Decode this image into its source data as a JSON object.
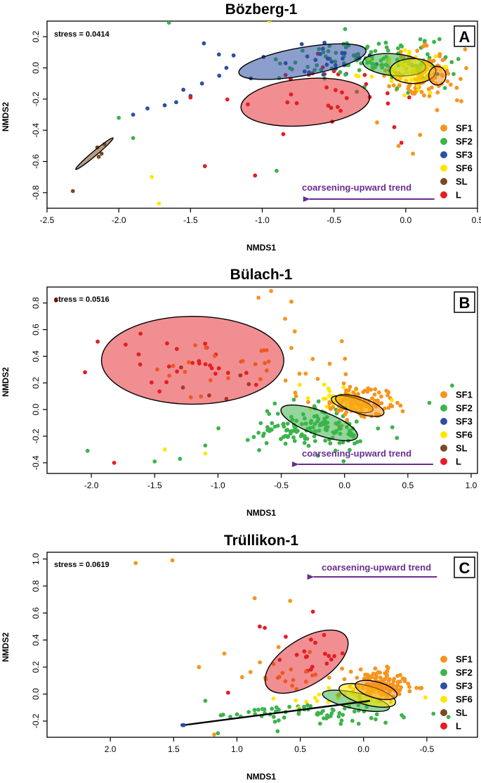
{
  "colors": {
    "SF1": "#f7941d",
    "SF2": "#3cb44b",
    "SF3": "#2e4ea3",
    "SF6": "#ffe600",
    "SL": "#7a4a23",
    "L": "#e31e24",
    "trend": "#6a2d91"
  },
  "chart_data": [
    {
      "type": "scatter",
      "panel_label": "A",
      "title": "Bözberg-1",
      "stress": "stress = 0.0414",
      "xlabel": "NMDS1",
      "ylabel": "NMDS2",
      "xlim": [
        -2.5,
        0.5
      ],
      "ylim": [
        -0.9,
        0.3
      ],
      "xticks": [
        -2.5,
        -2.0,
        -1.5,
        -1.0,
        -0.5,
        0.0,
        0.5
      ],
      "xtick_labels": [
        "-2.5",
        "-2.0",
        "-1.5",
        "-1.0",
        "-0.5",
        "0.0",
        "0.5"
      ],
      "yticks": [
        -0.8,
        -0.6,
        -0.4,
        -0.2,
        0.0,
        0.2
      ],
      "ytick_labels": [
        "-0.8",
        "-0.6",
        "-0.4",
        "-0.2",
        "0.0",
        "0.2"
      ],
      "legend": [
        "SF1",
        "SF2",
        "SF3",
        "SF6",
        "SL",
        "L"
      ],
      "trend_label": "coarsening-upward trend",
      "trend_arrow": {
        "from": 0.2,
        "to": -0.72,
        "y": -0.77
      },
      "clusters": [
        {
          "group": "SF1",
          "cx": 0.1,
          "cy": -0.05,
          "sx": 0.12,
          "sy": 0.08,
          "n": 120
        },
        {
          "group": "SF2",
          "cx": -0.25,
          "cy": 0.05,
          "sx": 0.28,
          "sy": 0.07,
          "n": 110
        },
        {
          "group": "SF3",
          "cx": -0.55,
          "cy": 0.05,
          "sx": 0.28,
          "sy": 0.06,
          "n": 30
        },
        {
          "group": "SF6",
          "cx": 0.0,
          "cy": -0.02,
          "sx": 0.15,
          "sy": 0.07,
          "n": 40
        },
        {
          "group": "L",
          "cx": -0.55,
          "cy": -0.15,
          "sx": 0.3,
          "sy": 0.12,
          "n": 30
        }
      ],
      "points": [
        {
          "group": "SF3",
          "x": -1.8,
          "y": -0.26
        },
        {
          "group": "SF3",
          "x": -1.9,
          "y": -0.3
        },
        {
          "group": "SF3",
          "x": -1.5,
          "y": -0.18
        },
        {
          "group": "SF3",
          "x": -1.6,
          "y": -0.22
        },
        {
          "group": "SF3",
          "x": -1.3,
          "y": -0.05
        },
        {
          "group": "SF3",
          "x": -1.2,
          "y": 0.08
        },
        {
          "group": "SF3",
          "x": -1.42,
          "y": -0.1
        },
        {
          "group": "SF3",
          "x": -1.68,
          "y": -0.24
        },
        {
          "group": "SF3",
          "x": -1.55,
          "y": -0.14
        },
        {
          "group": "SF3",
          "x": -1.25,
          "y": 0.0
        },
        {
          "group": "SF2",
          "x": -1.65,
          "y": 0.29
        },
        {
          "group": "SF2",
          "x": -1.9,
          "y": -0.45
        },
        {
          "group": "SF2",
          "x": -0.9,
          "y": -0.66
        },
        {
          "group": "SF2",
          "x": -2.0,
          "y": -0.32
        },
        {
          "group": "SF6",
          "x": -1.72,
          "y": -0.87
        },
        {
          "group": "SF6",
          "x": -1.77,
          "y": -0.7
        },
        {
          "group": "SF6",
          "x": -0.95,
          "y": 0.3
        },
        {
          "group": "L",
          "x": -1.4,
          "y": -0.63
        },
        {
          "group": "L",
          "x": -1.05,
          "y": -0.69
        },
        {
          "group": "L",
          "x": -1.5,
          "y": -0.19
        },
        {
          "group": "L",
          "x": -0.08,
          "y": -0.38
        },
        {
          "group": "L",
          "x": -0.03,
          "y": -0.48
        },
        {
          "group": "SL",
          "x": -2.32,
          "y": -0.79
        },
        {
          "group": "SL",
          "x": -2.15,
          "y": -0.51
        },
        {
          "group": "SL",
          "x": -2.12,
          "y": -0.55
        },
        {
          "group": "SL",
          "x": -2.14,
          "y": -0.57
        },
        {
          "group": "SL",
          "x": -2.1,
          "y": -0.49
        },
        {
          "group": "SF1",
          "x": 0.1,
          "y": -0.43
        },
        {
          "group": "SF1",
          "x": -0.05,
          "y": -0.5
        },
        {
          "group": "SF1",
          "x": 0.05,
          "y": -0.55
        },
        {
          "group": "SF1",
          "x": -0.2,
          "y": -0.35
        }
      ],
      "ellipses": [
        {
          "group": "SF3",
          "cx": -0.72,
          "cy": 0.04,
          "rx": 0.45,
          "ry": 0.09,
          "angle": 10
        },
        {
          "group": "L",
          "cx": -0.7,
          "cy": -0.22,
          "rx": 0.45,
          "ry": 0.15,
          "angle": 5
        },
        {
          "group": "SF2",
          "cx": -0.08,
          "cy": 0.02,
          "rx": 0.22,
          "ry": 0.07,
          "angle": -5
        },
        {
          "group": "SF6",
          "cx": 0.05,
          "cy": -0.02,
          "rx": 0.16,
          "ry": 0.08,
          "angle": 0
        },
        {
          "group": "SF1",
          "cx": 0.22,
          "cy": -0.05,
          "rx": 0.06,
          "ry": 0.06,
          "angle": 0
        },
        {
          "group": "SL",
          "cx": -2.17,
          "cy": -0.55,
          "rx": 0.17,
          "ry": 0.015,
          "angle": 40
        }
      ]
    },
    {
      "type": "scatter",
      "panel_label": "B",
      "title": "Bülach-1",
      "stress": "stress = 0.0516",
      "xlabel": "NMDS1",
      "ylabel": "NMDS2",
      "xlim": [
        -2.35,
        1.05
      ],
      "ylim": [
        -0.48,
        0.92
      ],
      "xticks": [
        -2.0,
        -1.5,
        -1.0,
        -0.5,
        0.0,
        0.5,
        1.0
      ],
      "xtick_labels": [
        "-2.0",
        "-1.5",
        "-1.0",
        "-0.5",
        "0.0",
        "0.5",
        "1.0"
      ],
      "yticks": [
        -0.4,
        -0.2,
        0.0,
        0.2,
        0.4,
        0.6,
        0.8
      ],
      "ytick_labels": [
        "-0.4",
        "-0.2",
        "0.0",
        "0.2",
        "0.4",
        "0.6",
        "0.8"
      ],
      "legend": [
        "SF1",
        "SF2",
        "SF3",
        "SF6",
        "SL",
        "L"
      ],
      "trend_label": "coarsening-upward trend",
      "trend_arrow": {
        "from": 0.7,
        "to": -0.42,
        "y": -0.44
      },
      "clusters": [
        {
          "group": "SF1",
          "cx": 0.1,
          "cy": 0.05,
          "sx": 0.12,
          "sy": 0.05,
          "n": 120
        },
        {
          "group": "SF2",
          "cx": -0.25,
          "cy": -0.15,
          "sx": 0.25,
          "sy": 0.07,
          "n": 140
        },
        {
          "group": "SF6",
          "cx": -0.05,
          "cy": 0.1,
          "sx": 0.15,
          "sy": 0.05,
          "n": 25
        },
        {
          "group": "SF1",
          "cx": -0.4,
          "cy": 0.35,
          "sx": 0.25,
          "sy": 0.15,
          "n": 25
        },
        {
          "group": "L",
          "cx": -1.2,
          "cy": 0.3,
          "sx": 0.22,
          "sy": 0.12,
          "n": 25
        },
        {
          "group": "SF1",
          "cx": -1.2,
          "cy": 0.3,
          "sx": 0.22,
          "sy": 0.12,
          "n": 12
        },
        {
          "group": "SL",
          "cx": -1.0,
          "cy": 0.2,
          "sx": 0.15,
          "sy": 0.1,
          "n": 6
        }
      ],
      "points": [
        {
          "group": "L",
          "x": -2.28,
          "y": 0.82
        },
        {
          "group": "L",
          "x": -1.82,
          "y": -0.4
        },
        {
          "group": "L",
          "x": -1.95,
          "y": 0.51
        },
        {
          "group": "L",
          "x": -2.05,
          "y": 0.28
        },
        {
          "group": "SF2",
          "x": -2.03,
          "y": -0.31
        },
        {
          "group": "SF2",
          "x": -1.5,
          "y": -0.39
        },
        {
          "group": "SF2",
          "x": -1.3,
          "y": -0.37
        },
        {
          "group": "SF2",
          "x": -1.1,
          "y": -0.27
        },
        {
          "group": "SF2",
          "x": 0.85,
          "y": 0.18
        },
        {
          "group": "SF2",
          "x": 0.67,
          "y": 0.05
        },
        {
          "group": "SF6",
          "x": -1.42,
          "y": -0.3
        },
        {
          "group": "SF6",
          "x": -1.1,
          "y": -0.33
        },
        {
          "group": "SF1",
          "x": -0.58,
          "y": 0.89
        },
        {
          "group": "SF1",
          "x": -0.68,
          "y": 0.84
        },
        {
          "group": "SF1",
          "x": -0.42,
          "y": 0.81
        }
      ],
      "ellipses": [
        {
          "group": "L",
          "cx": -1.2,
          "cy": 0.37,
          "rx": 0.72,
          "ry": 0.33,
          "angle": 0
        },
        {
          "group": "SF2",
          "cx": -0.2,
          "cy": -0.1,
          "rx": 0.32,
          "ry": 0.09,
          "angle": -20
        },
        {
          "group": "SF6",
          "cx": 0.06,
          "cy": 0.04,
          "rx": 0.17,
          "ry": 0.05,
          "angle": -15
        },
        {
          "group": "SF1",
          "cx": 0.12,
          "cy": 0.03,
          "rx": 0.2,
          "ry": 0.06,
          "angle": -18
        }
      ]
    },
    {
      "type": "scatter",
      "panel_label": "C",
      "title": "Trüllikon-1",
      "stress": "stress = 0.0619",
      "xlabel": "NMDS1",
      "ylabel": "NMDS2",
      "xlim": [
        2.5,
        -0.9
      ],
      "ylim": [
        -0.32,
        1.05
      ],
      "xticks": [
        2.0,
        1.5,
        1.0,
        0.5,
        0.0,
        -0.5
      ],
      "xtick_labels": [
        "2.0",
        "1.5",
        "1.0",
        "0.5",
        "0.0",
        "-0.5"
      ],
      "yticks": [
        -0.2,
        0.0,
        0.2,
        0.4,
        0.6,
        0.8,
        1.0
      ],
      "ytick_labels": [
        "-0.2",
        "0.0",
        "0.2",
        "0.4",
        "0.6",
        "0.8",
        "1.0"
      ],
      "legend": [
        "SF1",
        "SF2",
        "SF3",
        "SF6",
        "SL",
        "L"
      ],
      "trend_label": "coarsening-upward trend",
      "trend_arrow": {
        "from": -0.58,
        "to": 0.45,
        "y": 0.87
      },
      "clusters": [
        {
          "group": "SF1",
          "cx": -0.15,
          "cy": 0.07,
          "sx": 0.12,
          "sy": 0.05,
          "n": 130
        },
        {
          "group": "SF1",
          "cx": 0.5,
          "cy": 0.15,
          "sx": 0.25,
          "sy": 0.1,
          "n": 25
        },
        {
          "group": "SF2",
          "cx": 0.4,
          "cy": -0.15,
          "sx": 0.35,
          "sy": 0.04,
          "n": 70
        },
        {
          "group": "SF6",
          "cx": 0.2,
          "cy": -0.05,
          "sx": 0.25,
          "sy": 0.05,
          "n": 20
        },
        {
          "group": "L",
          "cx": 0.4,
          "cy": 0.3,
          "sx": 0.15,
          "sy": 0.08,
          "n": 18
        }
      ],
      "points": [
        {
          "group": "SF1",
          "x": 1.8,
          "y": 0.97
        },
        {
          "group": "SF1",
          "x": 1.51,
          "y": 0.99
        },
        {
          "group": "SF1",
          "x": 0.86,
          "y": 0.71
        },
        {
          "group": "SF1",
          "x": 0.58,
          "y": 0.69
        },
        {
          "group": "SF1",
          "x": 1.3,
          "y": 0.2
        },
        {
          "group": "SF1",
          "x": 1.1,
          "y": 0.3
        },
        {
          "group": "SF1",
          "x": 1.18,
          "y": -0.3
        },
        {
          "group": "SF2",
          "x": 1.25,
          "y": -0.05
        },
        {
          "group": "SF2",
          "x": 1.15,
          "y": -0.29
        },
        {
          "group": "SF2",
          "x": 1.0,
          "y": -0.15
        },
        {
          "group": "L",
          "x": 0.4,
          "y": 0.61
        },
        {
          "group": "L",
          "x": 0.82,
          "y": 0.5
        },
        {
          "group": "L",
          "x": 0.78,
          "y": 0.49
        },
        {
          "group": "L",
          "x": 1.07,
          "y": 0.01
        },
        {
          "group": "SF3",
          "x": 1.43,
          "y": -0.23
        }
      ],
      "ellipses": [
        {
          "group": "L",
          "cx": 0.45,
          "cy": 0.24,
          "rx": 0.37,
          "ry": 0.17,
          "angle": 32
        },
        {
          "group": "SF2",
          "cx": 0.06,
          "cy": -0.05,
          "rx": 0.27,
          "ry": 0.06,
          "angle": -12
        },
        {
          "group": "SF6",
          "cx": -0.03,
          "cy": -0.01,
          "rx": 0.23,
          "ry": 0.07,
          "angle": -15
        },
        {
          "group": "SF1",
          "cx": -0.1,
          "cy": 0.03,
          "rx": 0.17,
          "ry": 0.06,
          "angle": -15
        }
      ],
      "segment": {
        "group": "SF3",
        "x1": 1.42,
        "y1": -0.23,
        "x2": -0.05,
        "y2": -0.05
      }
    }
  ]
}
